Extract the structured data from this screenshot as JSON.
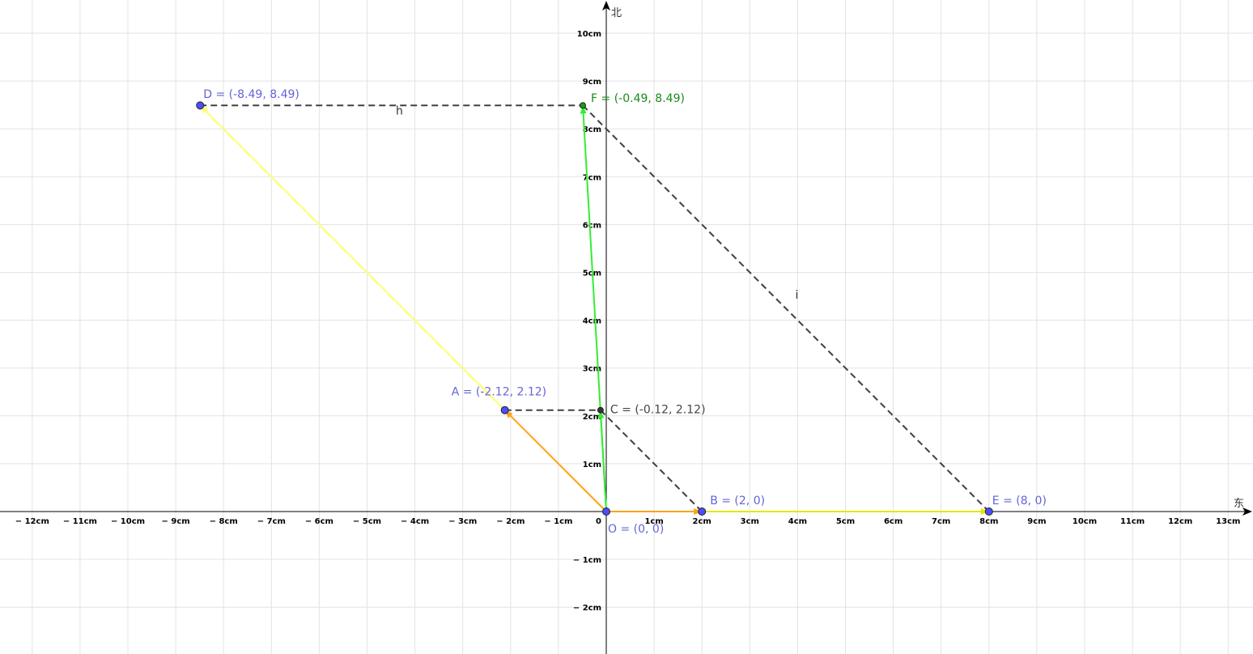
{
  "axes": {
    "x_name": "东",
    "y_name": "北",
    "unit": "cm",
    "xlim": [
      -12.7,
      13.5
    ],
    "ylim": [
      -2.9,
      10.7
    ],
    "x_ticks": [
      -12,
      -11,
      -10,
      -9,
      -8,
      -7,
      -6,
      -5,
      -4,
      -3,
      -2,
      -1,
      1,
      2,
      3,
      4,
      5,
      6,
      7,
      8,
      9,
      10,
      11,
      12,
      13
    ],
    "y_ticks": [
      -2,
      -1,
      1,
      2,
      3,
      4,
      5,
      6,
      7,
      8,
      9,
      10
    ],
    "origin_tick": "0",
    "grid": true
  },
  "points": [
    {
      "id": "O",
      "label": "O = (0, 0)",
      "x": 0,
      "y": 0,
      "color": "#4d4dff",
      "label_color": "#6464d8"
    },
    {
      "id": "A",
      "label": "A = (-2.12, 2.12)",
      "x": -2.12,
      "y": 2.12,
      "color": "#4d4dff",
      "label_color": "#6464d8"
    },
    {
      "id": "B",
      "label": "B = (2, 0)",
      "x": 2,
      "y": 0,
      "color": "#4d4dff",
      "label_color": "#6464d8"
    },
    {
      "id": "C",
      "label": "C = (-0.12, 2.12)",
      "x": -0.12,
      "y": 2.12,
      "color": "#333333",
      "label_color": "#444444"
    },
    {
      "id": "D",
      "label": "D = (-8.49, 8.49)",
      "x": -8.49,
      "y": 8.49,
      "color": "#4d4dff",
      "label_color": "#6464d8"
    },
    {
      "id": "E",
      "label": "E = (8, 0)",
      "x": 8,
      "y": 0,
      "color": "#4d4dff",
      "label_color": "#6464d8"
    },
    {
      "id": "F",
      "label": "F = (-0.49, 8.49)",
      "x": -0.49,
      "y": 8.49,
      "color": "#1a9a1a",
      "label_color": "#1a8a1a"
    }
  ],
  "vectors": [
    {
      "id": "vec-OD",
      "from": [
        0,
        0
      ],
      "to": [
        -8.49,
        8.49
      ],
      "color": "#ffff66"
    },
    {
      "id": "vec-OE",
      "from": [
        2,
        0
      ],
      "to": [
        8,
        0
      ],
      "color": "#e6e600"
    },
    {
      "id": "vec-OA",
      "from": [
        0,
        0
      ],
      "to": [
        -2.12,
        2.12
      ],
      "color": "#ffa31a"
    },
    {
      "id": "vec-OB",
      "from": [
        0,
        0
      ],
      "to": [
        2,
        0
      ],
      "color": "#ffa31a"
    },
    {
      "id": "vec-OC",
      "from": [
        0,
        0
      ],
      "to": [
        -0.12,
        2.12
      ],
      "color": "#33ee33"
    },
    {
      "id": "vec-OF",
      "from": [
        0,
        0
      ],
      "to": [
        -0.49,
        8.49
      ],
      "color": "#33ee33"
    }
  ],
  "dashed_segments": [
    {
      "id": "seg-h",
      "from": [
        -8.49,
        8.49
      ],
      "to": [
        -0.49,
        8.49
      ],
      "label": "h",
      "label_at": [
        -4.4,
        8.3
      ]
    },
    {
      "id": "seg-i",
      "from": [
        -0.49,
        8.49
      ],
      "to": [
        8,
        0
      ],
      "label": "i",
      "label_at": [
        3.95,
        4.45
      ]
    },
    {
      "id": "seg-AC",
      "from": [
        -2.12,
        2.12
      ],
      "to": [
        -0.12,
        2.12
      ],
      "label": "",
      "label_at": null
    },
    {
      "id": "seg-CB",
      "from": [
        -0.12,
        2.12
      ],
      "to": [
        2,
        0
      ],
      "label": "",
      "label_at": null
    }
  ]
}
